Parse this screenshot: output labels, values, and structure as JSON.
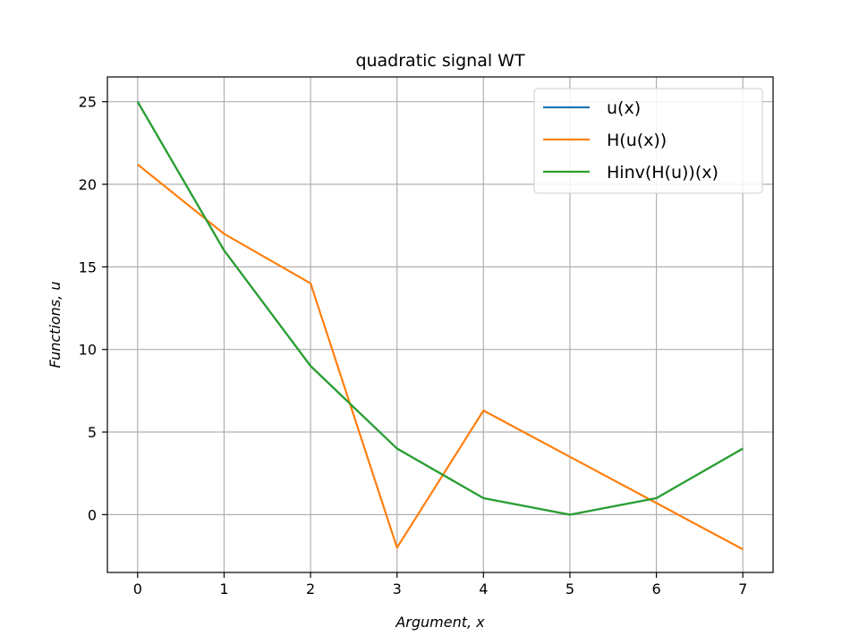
{
  "chart_data": {
    "type": "line",
    "title": "quadratic signal WT",
    "xlabel": "Argument, x",
    "ylabel": "Functions, u",
    "x": [
      0,
      1,
      2,
      3,
      4,
      5,
      6,
      7
    ],
    "xlim": [
      -0.35,
      7.35
    ],
    "ylim": [
      -3.5,
      26.5
    ],
    "xticks": [
      0,
      1,
      2,
      3,
      4,
      5,
      6,
      7
    ],
    "yticks": [
      0,
      5,
      10,
      15,
      20,
      25
    ],
    "grid": true,
    "legend_position": "top-right",
    "series": [
      {
        "name": "u(x)",
        "color": "#1f77b4",
        "values": [
          25,
          16,
          9,
          4,
          1,
          0,
          1,
          4
        ]
      },
      {
        "name": "H(u(x))",
        "color": "#ff7f0e",
        "values": [
          21.2,
          17,
          14,
          -2,
          6.3,
          3.5,
          0.7,
          -2.1
        ]
      },
      {
        "name": "Hinv(H(u))(x)",
        "color": "#2ca02c",
        "values": [
          25,
          16,
          9,
          4,
          1,
          0,
          1,
          4
        ]
      }
    ]
  }
}
